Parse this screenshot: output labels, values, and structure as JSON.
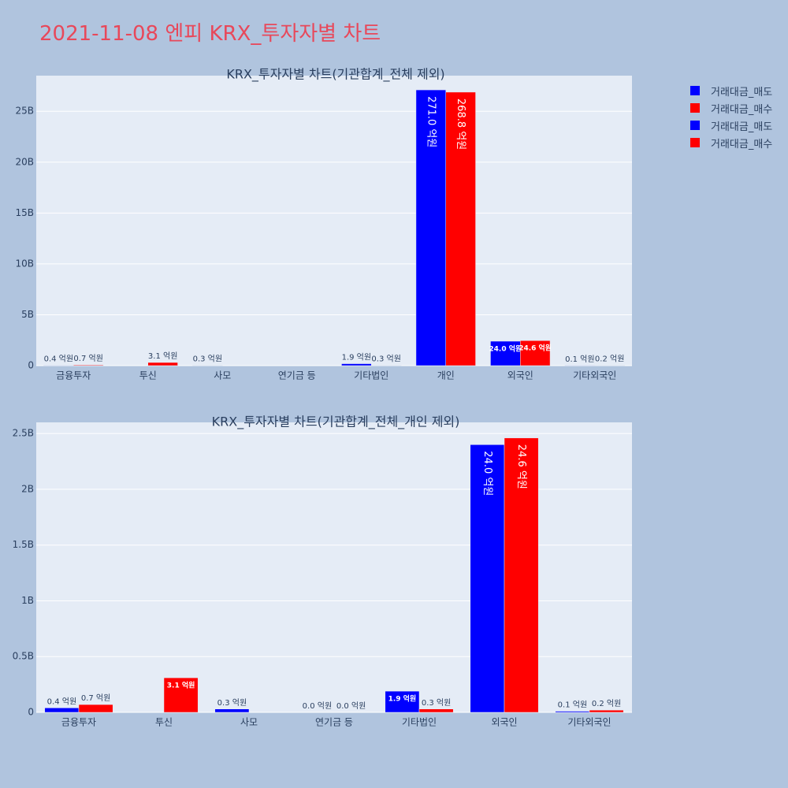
{
  "title": "2021-11-08 엔피 KRX_투자자별 차트",
  "legend": [
    {
      "label": "거래대금_매도",
      "color": "#0000ff"
    },
    {
      "label": "거래대금_매수",
      "color": "#ff0000"
    },
    {
      "label": "거래대금_매도",
      "color": "#0000ff"
    },
    {
      "label": "거래대금_매수",
      "color": "#ff0000"
    }
  ],
  "chart_data": [
    {
      "type": "bar",
      "title": "KRX_투자자별 차트(기관합계_전체 제외)",
      "categories": [
        "금융투자",
        "투신",
        "사모",
        "연기금 등",
        "기타법인",
        "개인",
        "외국인",
        "기타외국인"
      ],
      "series": [
        {
          "name": "거래대금_매도",
          "color": "#0000ff",
          "values": [
            0.04,
            0.0,
            0.03,
            0.0,
            0.19,
            27.1,
            2.4,
            0.01
          ],
          "labels": [
            "0.4 억원",
            "",
            "0.3 억원",
            "",
            "1.9 억원",
            "271.0 억원",
            "24.0 억원",
            "0.1 억원"
          ]
        },
        {
          "name": "거래대금_매수",
          "color": "#ff0000",
          "values": [
            0.07,
            0.31,
            0.0,
            0.0,
            0.03,
            26.88,
            2.46,
            0.02
          ],
          "labels": [
            "0.7 억원",
            "3.1 억원",
            "",
            "",
            "0.3 억원",
            "268.8 억원",
            "24.6 억원",
            "0.2 억원"
          ]
        }
      ],
      "yticks": [
        0,
        5,
        10,
        15,
        20,
        25
      ],
      "ytick_labels": [
        "0",
        "5B",
        "10B",
        "15B",
        "20B",
        "25B"
      ],
      "ylim": [
        0,
        28.5
      ],
      "grid": true
    },
    {
      "type": "bar",
      "title": "KRX_투자자별 차트(기관합계_전체_개인 제외)",
      "categories": [
        "금융투자",
        "투신",
        "사모",
        "연기금 등",
        "기타법인",
        "외국인",
        "기타외국인"
      ],
      "series": [
        {
          "name": "거래대금_매도",
          "color": "#0000ff",
          "values": [
            0.04,
            0.0,
            0.03,
            0.0,
            0.19,
            2.4,
            0.01
          ],
          "labels": [
            "0.4 억원",
            "",
            "0.3 억원",
            "0.0 억원",
            "1.9 억원",
            "24.0 억원",
            "0.1 억원"
          ]
        },
        {
          "name": "거래대금_매수",
          "color": "#ff0000",
          "values": [
            0.07,
            0.31,
            0.0,
            0.0,
            0.03,
            2.46,
            0.02
          ],
          "labels": [
            "0.7 억원",
            "3.1 억원",
            "",
            "0.0 억원",
            "0.3 억원",
            "24.6 억원",
            "0.2 억원"
          ]
        }
      ],
      "yticks": [
        0,
        0.5,
        1,
        1.5,
        2,
        2.5
      ],
      "ytick_labels": [
        "0",
        "0.5B",
        "1B",
        "1.5B",
        "2B",
        "2.5B"
      ],
      "ylim": [
        0,
        2.6
      ],
      "grid": true
    }
  ]
}
